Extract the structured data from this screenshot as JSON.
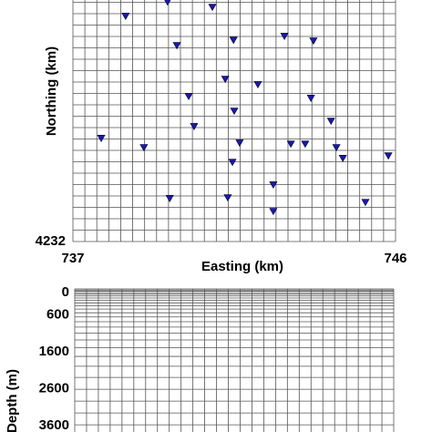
{
  "chart_data": [
    {
      "type": "scatter",
      "xlabel": "Easting (km)",
      "ylabel": "Northing (km)",
      "color": "#1a1aa8",
      "xlim": [
        737,
        746
      ],
      "ylim": [
        4232,
        4239
      ],
      "xticks": [
        737,
        746
      ],
      "yticks": [
        4232
      ],
      "grid": true,
      "x": [
        738.47,
        739.64,
        740.89,
        739.9,
        741.48,
        742.9,
        743.71,
        741.25,
        742.16,
        740.23,
        743.64,
        741.5,
        744.2,
        740.38,
        737.79,
        738.98,
        741.65,
        743.08,
        743.48,
        744.35,
        741.45,
        744.53,
        745.8,
        742.59,
        739.7,
        741.32,
        745.16,
        742.59
      ],
      "values": [
        4238.29,
        4238.69,
        4238.54,
        4237.47,
        4237.62,
        4237.73,
        4237.6,
        4236.53,
        4236.38,
        4236.05,
        4236.0,
        4235.64,
        4235.36,
        4235.21,
        4234.88,
        4234.62,
        4234.75,
        4234.72,
        4234.72,
        4234.62,
        4234.21,
        4234.32,
        4234.39,
        4233.58,
        4233.2,
        4233.22,
        4233.09,
        4232.84
      ]
    },
    {
      "type": "mesh",
      "ylabel": "Depth (m)",
      "ylim": [
        0,
        3800
      ],
      "yticks": [
        0,
        600,
        1600,
        2600,
        3600
      ],
      "grid": true
    }
  ]
}
